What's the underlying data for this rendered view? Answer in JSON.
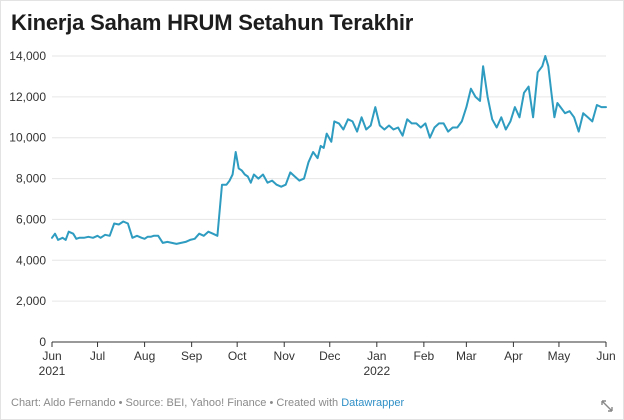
{
  "title": "Kinerja Saham HRUM Setahun Terakhir",
  "footer": {
    "chart_prefix": "Chart: ",
    "author": "Aldo Fernando",
    "sep1": " • ",
    "source_prefix": "Source: ",
    "source": "BEI, Yahoo! Finance",
    "sep2": " • ",
    "created_prefix": "Created with ",
    "tool": "Datawrapper"
  },
  "colors": {
    "line": "#2e9cc0",
    "grid": "#e6e6e6",
    "axis": "#333333",
    "text": "#333333"
  },
  "icons": {
    "expand": "expand-arrows-icon"
  },
  "chart_data": {
    "type": "line",
    "title": "Kinerja Saham HRUM Setahun Terakhir",
    "xlabel": "",
    "ylabel": "",
    "ylim": [
      0,
      14000
    ],
    "y_ticks": [
      0,
      2000,
      4000,
      6000,
      8000,
      10000,
      12000,
      14000
    ],
    "y_tick_labels": [
      "0",
      "2,000",
      "4,000",
      "6,000",
      "8,000",
      "10,000",
      "12,000",
      "14,000"
    ],
    "x_range": [
      "2021-06-01",
      "2022-06-01"
    ],
    "x_ticks": [
      {
        "date": "2021-06-01",
        "label": "Jun",
        "year": "2021"
      },
      {
        "date": "2021-07-01",
        "label": "Jul",
        "year": ""
      },
      {
        "date": "2021-08-01",
        "label": "Aug",
        "year": ""
      },
      {
        "date": "2021-09-01",
        "label": "Sep",
        "year": ""
      },
      {
        "date": "2021-10-01",
        "label": "Oct",
        "year": ""
      },
      {
        "date": "2021-11-01",
        "label": "Nov",
        "year": ""
      },
      {
        "date": "2021-12-01",
        "label": "Dec",
        "year": ""
      },
      {
        "date": "2022-01-01",
        "label": "Jan",
        "year": "2022"
      },
      {
        "date": "2022-02-01",
        "label": "Feb",
        "year": ""
      },
      {
        "date": "2022-03-01",
        "label": "Mar",
        "year": ""
      },
      {
        "date": "2022-04-01",
        "label": "Apr",
        "year": ""
      },
      {
        "date": "2022-05-01",
        "label": "May",
        "year": ""
      },
      {
        "date": "2022-06-01",
        "label": "Jun",
        "year": ""
      }
    ],
    "grid": true,
    "series": [
      {
        "x": [
          "2021-06-01",
          "2021-06-03",
          "2021-06-05",
          "2021-06-08",
          "2021-06-10",
          "2021-06-12",
          "2021-06-15",
          "2021-06-17",
          "2021-06-19",
          "2021-06-22",
          "2021-06-25",
          "2021-06-28",
          "2021-07-01",
          "2021-07-03",
          "2021-07-06",
          "2021-07-09",
          "2021-07-12",
          "2021-07-15",
          "2021-07-18",
          "2021-07-21",
          "2021-07-24",
          "2021-07-27",
          "2021-07-30",
          "2021-08-01",
          "2021-08-03",
          "2021-08-05",
          "2021-08-07",
          "2021-08-10",
          "2021-08-13",
          "2021-08-16",
          "2021-08-19",
          "2021-08-22",
          "2021-08-25",
          "2021-08-28",
          "2021-08-31",
          "2021-09-03",
          "2021-09-06",
          "2021-09-09",
          "2021-09-12",
          "2021-09-15",
          "2021-09-18",
          "2021-09-21",
          "2021-09-24",
          "2021-09-26",
          "2021-09-28",
          "2021-09-30",
          "2021-10-02",
          "2021-10-04",
          "2021-10-06",
          "2021-10-08",
          "2021-10-10",
          "2021-10-12",
          "2021-10-15",
          "2021-10-18",
          "2021-10-21",
          "2021-10-24",
          "2021-10-27",
          "2021-10-30",
          "2021-11-02",
          "2021-11-05",
          "2021-11-08",
          "2021-11-11",
          "2021-11-14",
          "2021-11-17",
          "2021-11-20",
          "2021-11-23",
          "2021-11-25",
          "2021-11-27",
          "2021-11-29",
          "2021-12-02",
          "2021-12-04",
          "2021-12-07",
          "2021-12-10",
          "2021-12-13",
          "2021-12-16",
          "2021-12-19",
          "2021-12-22",
          "2021-12-25",
          "2021-12-28",
          "2021-12-31",
          "2022-01-03",
          "2022-01-06",
          "2022-01-09",
          "2022-01-12",
          "2022-01-15",
          "2022-01-18",
          "2022-01-21",
          "2022-01-24",
          "2022-01-27",
          "2022-01-30",
          "2022-02-02",
          "2022-02-05",
          "2022-02-08",
          "2022-02-11",
          "2022-02-14",
          "2022-02-17",
          "2022-02-20",
          "2022-02-23",
          "2022-02-26",
          "2022-03-01",
          "2022-03-04",
          "2022-03-07",
          "2022-03-10",
          "2022-03-12",
          "2022-03-15",
          "2022-03-18",
          "2022-03-21",
          "2022-03-24",
          "2022-03-27",
          "2022-03-30",
          "2022-04-02",
          "2022-04-05",
          "2022-04-08",
          "2022-04-11",
          "2022-04-14",
          "2022-04-17",
          "2022-04-20",
          "2022-04-22",
          "2022-04-24",
          "2022-04-26",
          "2022-04-28",
          "2022-04-30",
          "2022-05-02",
          "2022-05-05",
          "2022-05-08",
          "2022-05-11",
          "2022-05-14",
          "2022-05-17",
          "2022-05-20",
          "2022-05-23",
          "2022-05-26",
          "2022-05-29",
          "2022-06-01"
        ],
        "values": [
          5100,
          5300,
          5000,
          5100,
          5000,
          5400,
          5300,
          5050,
          5100,
          5100,
          5150,
          5100,
          5200,
          5100,
          5250,
          5200,
          5800,
          5750,
          5900,
          5800,
          5100,
          5200,
          5100,
          5050,
          5150,
          5150,
          5200,
          5200,
          4850,
          4900,
          4850,
          4800,
          4850,
          4900,
          5000,
          5050,
          5300,
          5200,
          5400,
          5300,
          5200,
          7700,
          7700,
          7900,
          8200,
          9300,
          8500,
          8400,
          8200,
          8100,
          7800,
          8200,
          8000,
          8200,
          7800,
          7900,
          7700,
          7600,
          7700,
          8300,
          8100,
          7900,
          8000,
          8800,
          9300,
          9000,
          9600,
          9500,
          10200,
          9800,
          10800,
          10700,
          10400,
          10900,
          10800,
          10300,
          11000,
          10400,
          10600,
          11500,
          10600,
          10400,
          10600,
          10400,
          10500,
          10100,
          10900,
          10700,
          10700,
          10500,
          10700,
          10000,
          10500,
          10700,
          10700,
          10300,
          10500,
          10500,
          10800,
          11500,
          12400,
          12000,
          11800,
          13500,
          12000,
          10900,
          10500,
          11000,
          10400,
          10800,
          11500,
          11000,
          12200,
          12500,
          11000,
          13200,
          13500,
          14000,
          13500,
          12200,
          11000,
          11700,
          11500,
          11200,
          11300,
          11000,
          10300,
          11200,
          11000,
          10800,
          11600,
          11500,
          11500
        ]
      }
    ]
  }
}
